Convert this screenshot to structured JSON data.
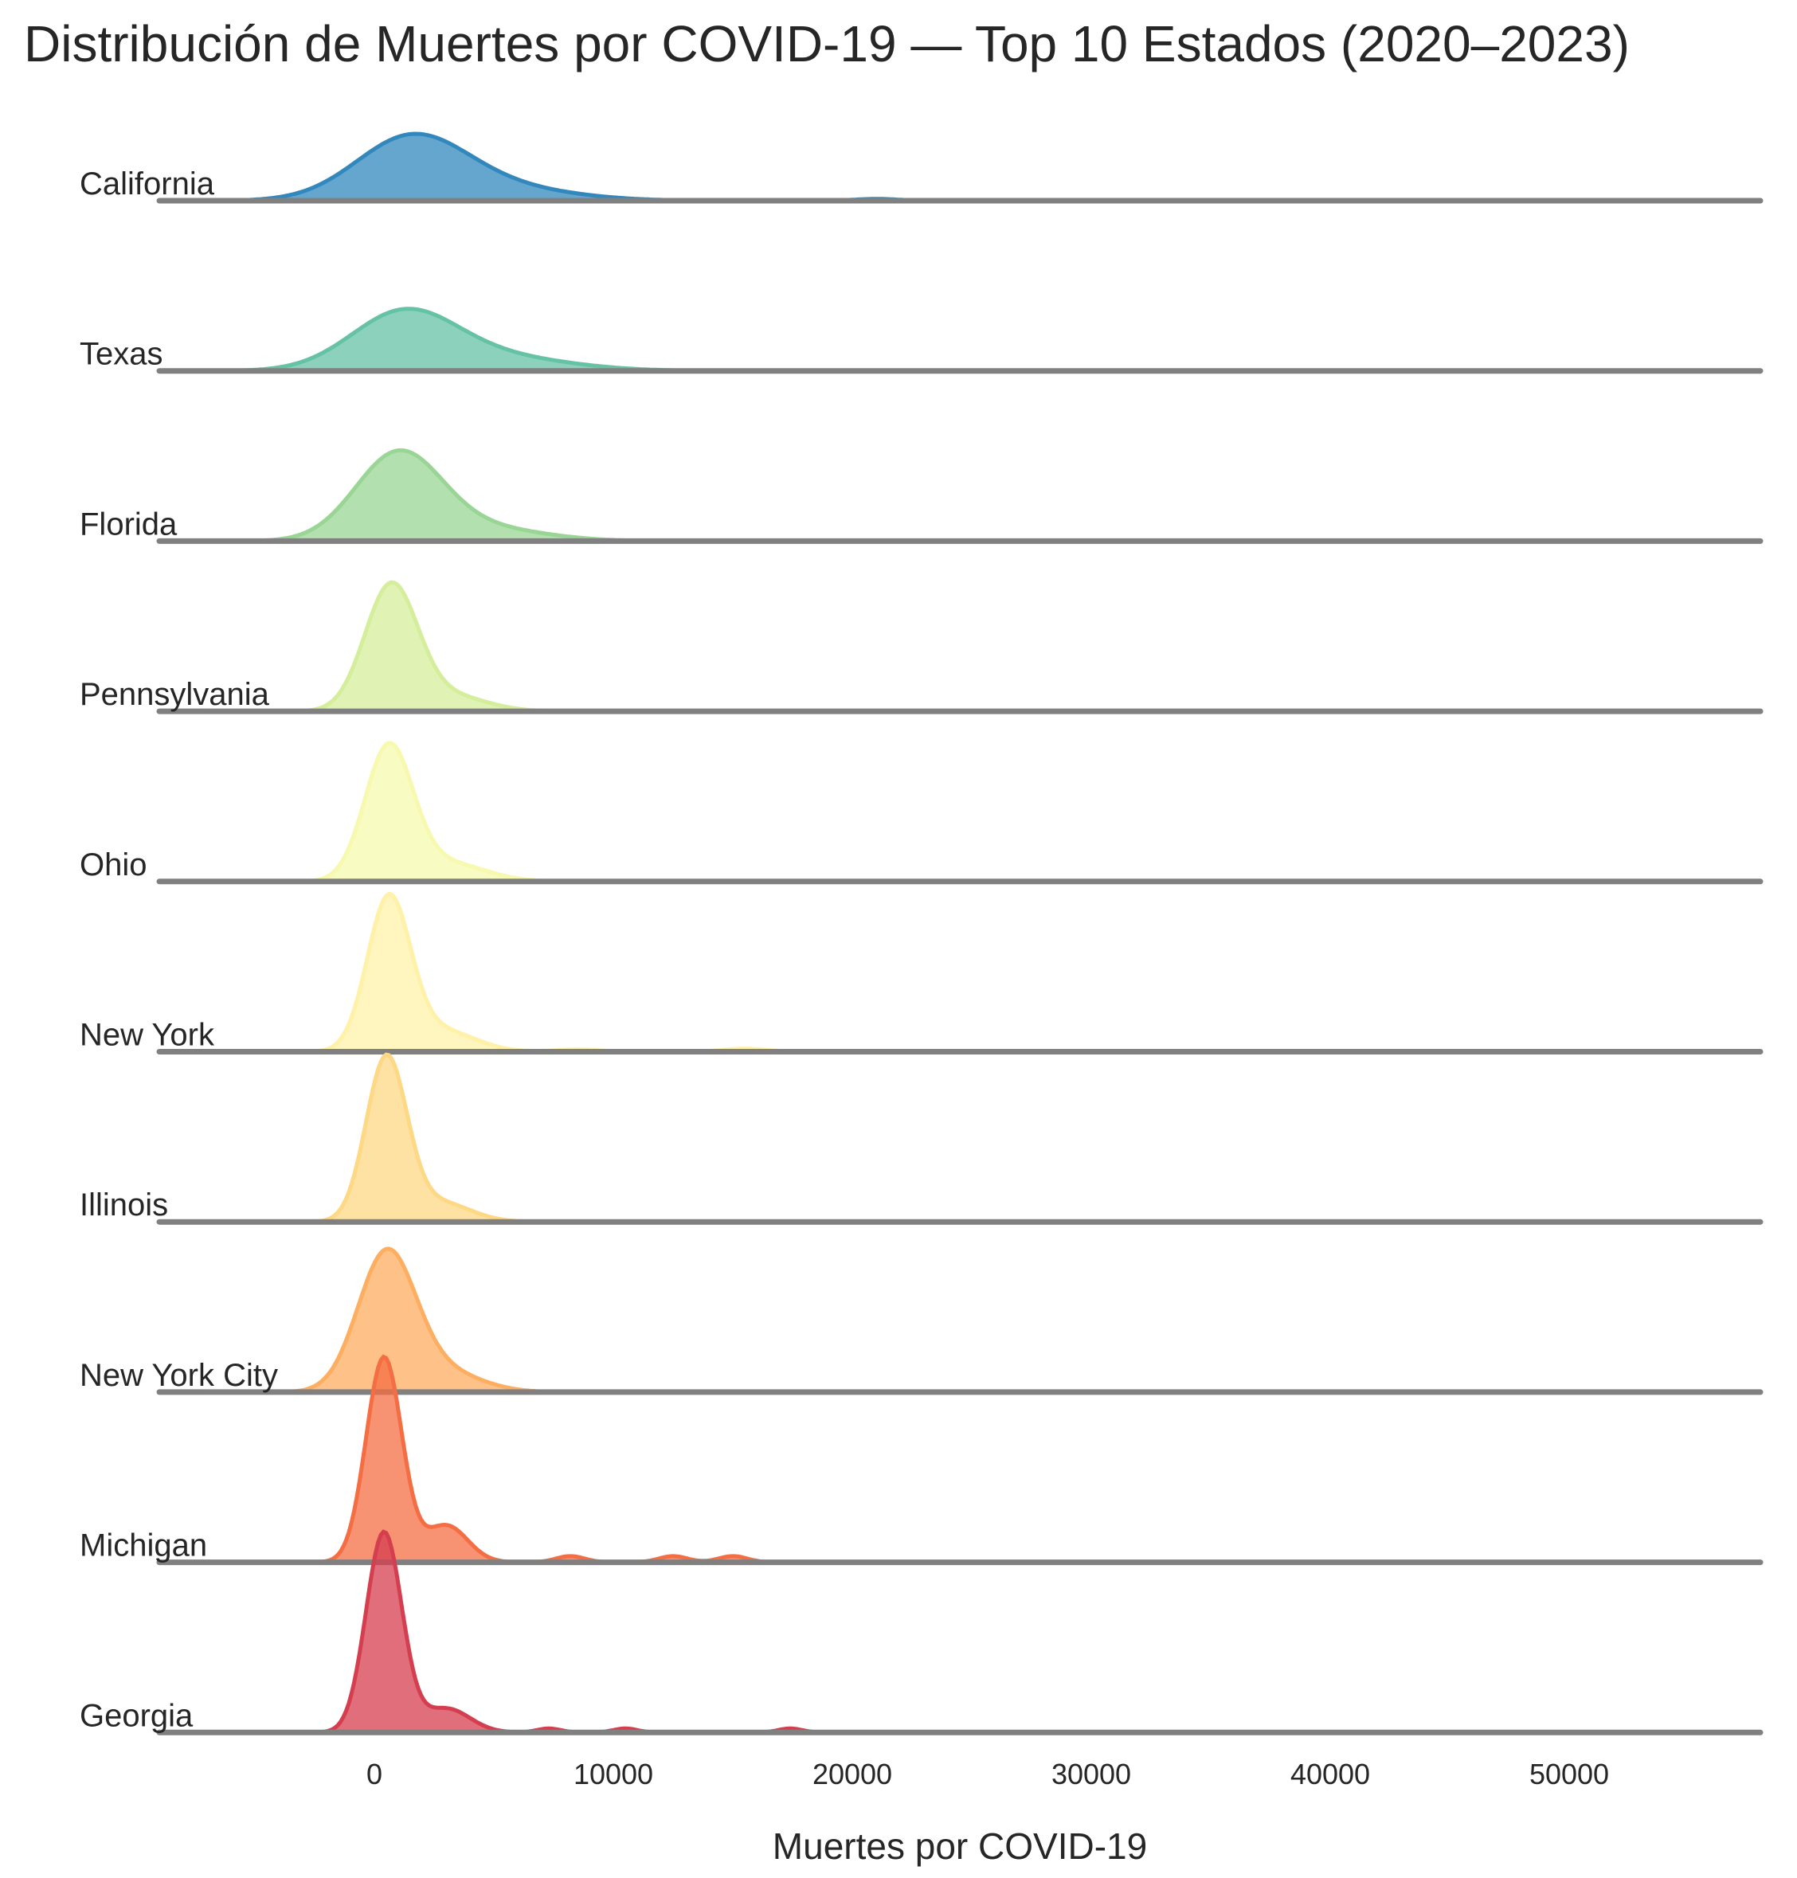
{
  "chart_data": {
    "type": "ridgeline",
    "title": "Distribución de Muertes por COVID-19 — Top 10 Estados (2020–2023)",
    "xlabel": "Muertes por COVID-19",
    "ylabel": "",
    "xlim": [
      -9000,
      58000
    ],
    "xticks": [
      0,
      10000,
      20000,
      30000,
      40000,
      50000
    ],
    "xtick_labels": [
      "0",
      "10000",
      "20000",
      "30000",
      "40000",
      "50000"
    ],
    "grid": false,
    "legend": "none",
    "baseline_color": "#808080",
    "series": [
      {
        "name": "California",
        "color": "#3288bd",
        "components": [
          {
            "mu": 1500,
            "sigma": 2300,
            "w": 1.0
          },
          {
            "mu": 5000,
            "sigma": 3000,
            "w": 0.22
          },
          {
            "mu": 21000,
            "sigma": 900,
            "w": 0.03
          }
        ],
        "peak_height": 0.14
      },
      {
        "name": "Texas",
        "color": "#66c2a5",
        "components": [
          {
            "mu": 1200,
            "sigma": 2200,
            "w": 1.0
          },
          {
            "mu": 5000,
            "sigma": 3000,
            "w": 0.25
          }
        ],
        "peak_height": 0.13
      },
      {
        "name": "Florida",
        "color": "#99d594",
        "components": [
          {
            "mu": 1000,
            "sigma": 1800,
            "w": 1.0
          },
          {
            "mu": 4500,
            "sigma": 2500,
            "w": 0.15
          }
        ],
        "peak_height": 0.19
      },
      {
        "name": "Pennsylvania",
        "color": "#d5ee9b",
        "components": [
          {
            "mu": 700,
            "sigma": 1100,
            "w": 1.0
          },
          {
            "mu": 3200,
            "sigma": 1500,
            "w": 0.12
          }
        ],
        "peak_height": 0.27
      },
      {
        "name": "Ohio",
        "color": "#f6f9ae",
        "components": [
          {
            "mu": 600,
            "sigma": 1000,
            "w": 1.0
          },
          {
            "mu": 3000,
            "sigma": 1600,
            "w": 0.14
          }
        ],
        "peak_height": 0.29
      },
      {
        "name": "New York",
        "color": "#fff1a8",
        "components": [
          {
            "mu": 600,
            "sigma": 900,
            "w": 1.0
          },
          {
            "mu": 2800,
            "sigma": 1400,
            "w": 0.14
          },
          {
            "mu": 8500,
            "sigma": 900,
            "w": 0.015
          },
          {
            "mu": 15500,
            "sigma": 900,
            "w": 0.02
          }
        ],
        "peak_height": 0.33
      },
      {
        "name": "Illinois",
        "color": "#fed884",
        "components": [
          {
            "mu": 500,
            "sigma": 850,
            "w": 1.0
          },
          {
            "mu": 2700,
            "sigma": 1300,
            "w": 0.12
          }
        ],
        "peak_height": 0.35
      },
      {
        "name": "New York City",
        "color": "#fdae61",
        "components": [
          {
            "mu": 500,
            "sigma": 1200,
            "w": 1.0
          },
          {
            "mu": 2800,
            "sigma": 1600,
            "w": 0.15
          }
        ],
        "peak_height": 0.3
      },
      {
        "name": "Michigan",
        "color": "#f46d43",
        "components": [
          {
            "mu": 400,
            "sigma": 750,
            "w": 1.0
          },
          {
            "mu": 3000,
            "sigma": 900,
            "w": 0.18
          },
          {
            "mu": 8200,
            "sigma": 600,
            "w": 0.03
          },
          {
            "mu": 12500,
            "sigma": 600,
            "w": 0.03
          },
          {
            "mu": 15000,
            "sigma": 600,
            "w": 0.03
          }
        ],
        "peak_height": 0.43
      },
      {
        "name": "Georgia",
        "color": "#d53e4f",
        "components": [
          {
            "mu": 400,
            "sigma": 750,
            "w": 1.0
          },
          {
            "mu": 3000,
            "sigma": 1000,
            "w": 0.12
          },
          {
            "mu": 7300,
            "sigma": 500,
            "w": 0.02
          },
          {
            "mu": 10500,
            "sigma": 500,
            "w": 0.02
          },
          {
            "mu": 17400,
            "sigma": 500,
            "w": 0.02
          }
        ],
        "peak_height": 0.42
      }
    ]
  }
}
